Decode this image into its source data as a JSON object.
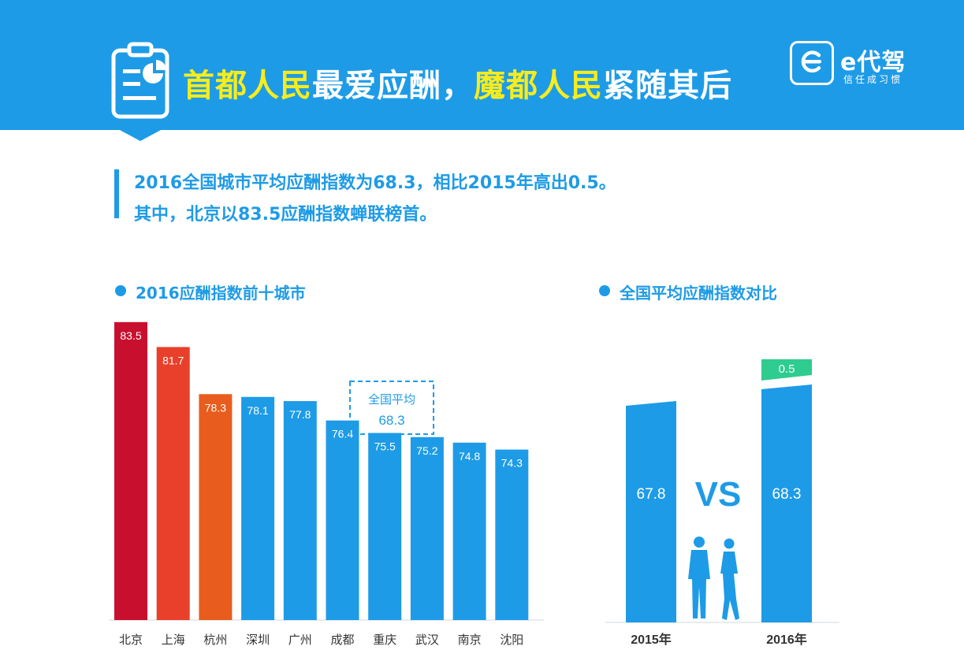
{
  "header": {
    "title_part1": "首都人民",
    "title_part2": "最爱应酬，",
    "title_part3": "魔都人民",
    "title_part4": "紧随其后",
    "brand_name": "e代驾",
    "brand_tagline": "信任成习惯",
    "colors": {
      "banner": "#1e9be6",
      "highlight": "#f7ec1d"
    }
  },
  "summary": {
    "line1": "2016全国城市平均应酬指数为68.3，相比2015年高出0.5。",
    "line2": "其中，北京以83.5应酬指数蝉联榜首。"
  },
  "chart_data": [
    {
      "type": "bar",
      "title": "2016应酬指数前十城市",
      "categories": [
        "北京",
        "上海",
        "杭州",
        "深圳",
        "广州",
        "成都",
        "重庆",
        "武汉",
        "南京",
        "沈阳"
      ],
      "values": [
        83.5,
        81.7,
        78.3,
        78.1,
        77.8,
        76.4,
        75.5,
        75.2,
        74.8,
        74.3
      ],
      "value_labels": [
        "83.5",
        "81.7",
        "78.3",
        "78.1",
        "77.8",
        "76.4",
        "75.5",
        "75.2",
        "74.8",
        "74.3"
      ],
      "colors": [
        "#c8102e",
        "#e8402a",
        "#e85d1e",
        "#1e9be6",
        "#1e9be6",
        "#1e9be6",
        "#1e9be6",
        "#1e9be6",
        "#1e9be6",
        "#1e9be6"
      ],
      "annotation": {
        "label": "全国平均",
        "value": "68.3"
      },
      "ylim": [
        62,
        84
      ]
    },
    {
      "type": "bar",
      "title": "全国平均应酬指数对比",
      "categories": [
        "2015年",
        "2016年"
      ],
      "values": [
        67.8,
        68.3
      ],
      "value_labels": [
        "67.8",
        "68.3"
      ],
      "increase": {
        "value": 0.5,
        "label": "0.5",
        "color": "#2ecc8f"
      },
      "vs_label": "VS",
      "colors": [
        "#1e9be6",
        "#1e9be6"
      ]
    }
  ]
}
